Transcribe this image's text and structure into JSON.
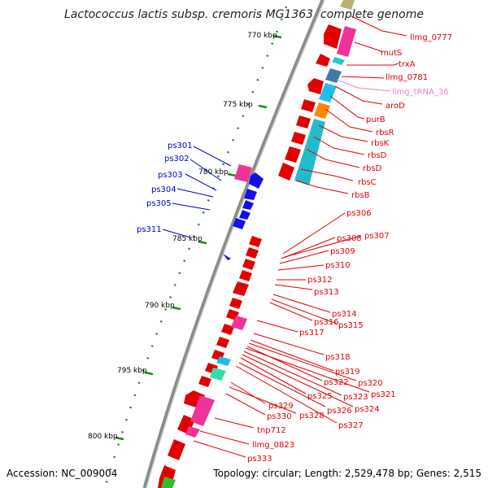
{
  "title": "Lactococcus lactis subsp. cremoris MG1363, complete genome",
  "footer": {
    "accession": "Accession: NC_009004",
    "topology": "Topology: circular; Length: 2,529,478 bp; Genes: 2,515"
  },
  "ticks": [
    "770 kbp",
    "775 kbp",
    "780 kbp",
    "785 kbp",
    "790 kbp",
    "795 kbp",
    "800 kbp"
  ],
  "right_labels": [
    {
      "text": "llmg_0777",
      "color": "#e00000"
    },
    {
      "text": "mutS",
      "color": "#e00000"
    },
    {
      "text": "trxA",
      "color": "#e00000"
    },
    {
      "text": "llmg_0781",
      "color": "#e00000"
    },
    {
      "text": "llmg_tRNA_36",
      "color": "#ee82c8"
    },
    {
      "text": "aroD",
      "color": "#e00000"
    },
    {
      "text": "purB",
      "color": "#e00000"
    },
    {
      "text": "rbsR",
      "color": "#e00000"
    },
    {
      "text": "rbsK",
      "color": "#e00000"
    },
    {
      "text": "rbsD",
      "color": "#e00000"
    },
    {
      "text": "rbsD",
      "color": "#e00000"
    },
    {
      "text": "rbsC",
      "color": "#e00000"
    },
    {
      "text": "rbsB",
      "color": "#e00000"
    },
    {
      "text": "ps306",
      "color": "#e00000"
    },
    {
      "text": "ps308",
      "color": "#e00000"
    },
    {
      "text": "ps307",
      "color": "#e00000"
    },
    {
      "text": "ps309",
      "color": "#e00000"
    },
    {
      "text": "ps310",
      "color": "#e00000"
    },
    {
      "text": "ps312",
      "color": "#e00000"
    },
    {
      "text": "ps313",
      "color": "#e00000"
    },
    {
      "text": "ps314",
      "color": "#e00000"
    },
    {
      "text": "ps316",
      "color": "#e00000"
    },
    {
      "text": "ps315",
      "color": "#e00000"
    },
    {
      "text": "ps317",
      "color": "#e00000"
    },
    {
      "text": "ps318",
      "color": "#e00000"
    },
    {
      "text": "ps319",
      "color": "#e00000"
    },
    {
      "text": "ps322",
      "color": "#e00000"
    },
    {
      "text": "ps320",
      "color": "#e00000"
    },
    {
      "text": "ps323",
      "color": "#e00000"
    },
    {
      "text": "ps321",
      "color": "#e00000"
    },
    {
      "text": "ps325",
      "color": "#e00000"
    },
    {
      "text": "ps326",
      "color": "#e00000"
    },
    {
      "text": "ps324",
      "color": "#e00000"
    },
    {
      "text": "ps329",
      "color": "#e00000"
    },
    {
      "text": "ps328",
      "color": "#e00000"
    },
    {
      "text": "ps330",
      "color": "#e00000"
    },
    {
      "text": "ps327",
      "color": "#e00000"
    },
    {
      "text": "tnp712",
      "color": "#e00000"
    },
    {
      "text": "llmg_0823",
      "color": "#e00000"
    },
    {
      "text": "ps333",
      "color": "#e00000"
    }
  ],
  "left_labels": [
    {
      "text": "ps301",
      "color": "#0000cc"
    },
    {
      "text": "ps302",
      "color": "#0000cc"
    },
    {
      "text": "ps303",
      "color": "#0000cc"
    },
    {
      "text": "ps304",
      "color": "#0000cc"
    },
    {
      "text": "ps305",
      "color": "#0000cc"
    },
    {
      "text": "ps311",
      "color": "#0000cc"
    }
  ],
  "colors": {
    "backbone": "#8c8c8c",
    "cds_forward": "#ee0000",
    "cds_reverse": "#1010ee",
    "gc_skew": "#1a8c1a",
    "pink": "#ee3399",
    "cyan": "#22bbcc",
    "orange": "#ff8800",
    "steelblue": "#4477aa",
    "olive": "#b8b070"
  }
}
